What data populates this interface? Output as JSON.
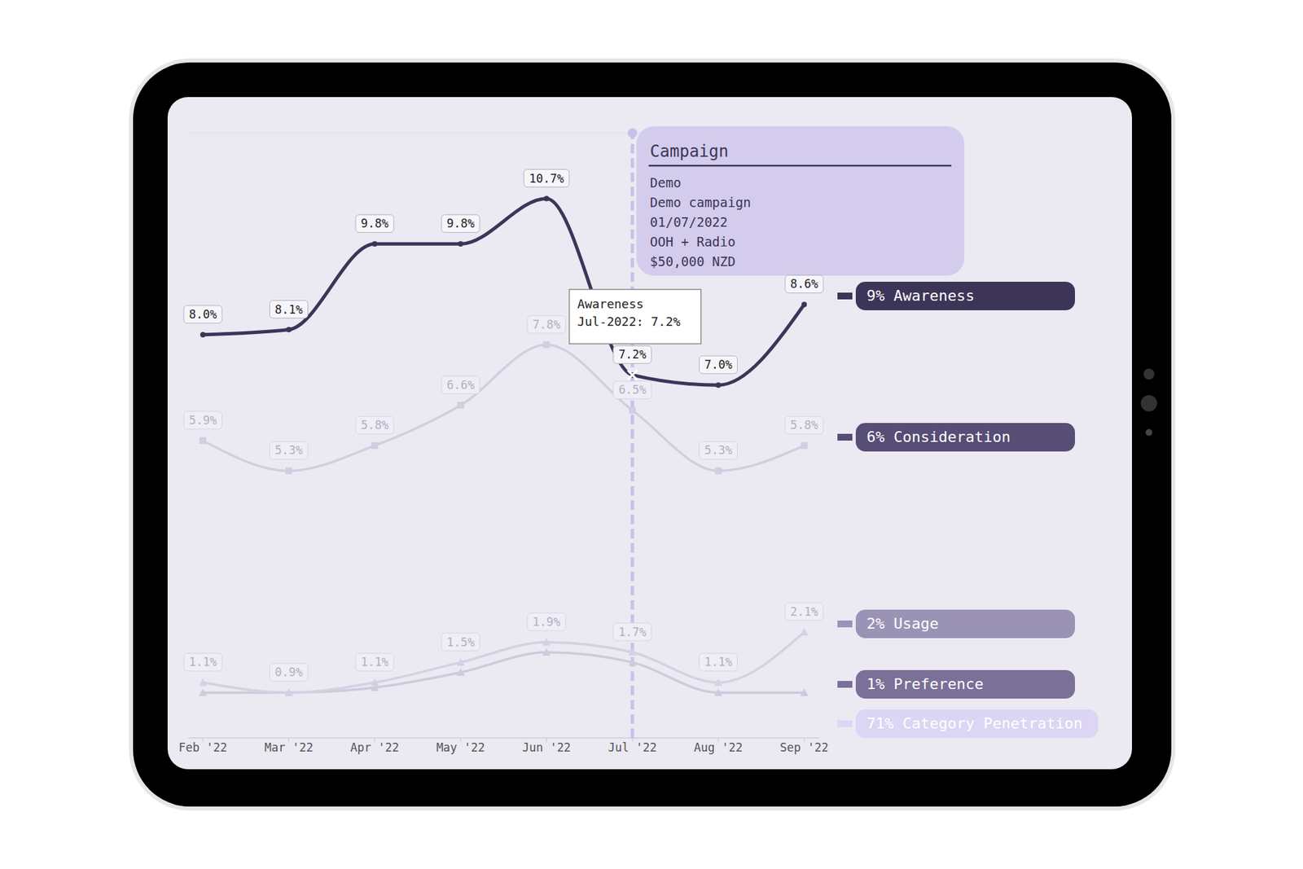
{
  "chart_data": {
    "type": "line",
    "categories": [
      "Feb '22",
      "Mar '22",
      "Apr '22",
      "May '22",
      "Jun '22",
      "Jul '22",
      "Aug '22",
      "Sep '22"
    ],
    "ylim": [
      0,
      12
    ],
    "yticks": [
      0,
      1,
      2,
      3,
      4,
      5,
      6,
      7,
      8,
      9,
      10,
      11,
      12
    ],
    "grid": true,
    "tick_labels": "x",
    "legend": "right",
    "series": [
      {
        "name": "Awareness",
        "label": "9% Awareness",
        "color": "#3d3558",
        "marker": "circle",
        "data_labels": true,
        "values": [
          8.0,
          8.1,
          9.8,
          9.8,
          10.7,
          7.2,
          7.0,
          8.6
        ],
        "value_labels": [
          "8.0%",
          "8.1%",
          "9.8%",
          "9.8%",
          "10.7%",
          "7.2%",
          "7.0%",
          "8.6%"
        ]
      },
      {
        "name": "Consideration",
        "label": "6% Consideration",
        "color": "#d2cddf",
        "marker": "square",
        "data_labels": true,
        "values": [
          5.9,
          5.3,
          5.8,
          6.6,
          7.8,
          6.5,
          5.3,
          5.8
        ],
        "value_labels": [
          "5.9%",
          "5.3%",
          "5.8%",
          "6.6%",
          "7.8%",
          "6.5%",
          "5.3%",
          "5.8%"
        ]
      },
      {
        "name": "Usage",
        "label": "2% Usage",
        "color": "#d5d0e2",
        "marker": "triangle",
        "data_labels": true,
        "values": [
          1.1,
          0.9,
          1.1,
          1.5,
          1.9,
          1.7,
          1.1,
          2.1
        ],
        "value_labels": [
          "1.1%",
          "0.9%",
          "1.1%",
          "1.5%",
          "1.9%",
          "1.7%",
          "1.1%",
          "2.1%"
        ]
      },
      {
        "name": "Preference",
        "label": "1% Preference",
        "color": "#cfcadb",
        "marker": "triangle",
        "data_labels": false,
        "values": [
          0.9,
          0.9,
          1.0,
          1.3,
          1.7,
          1.5,
          0.9,
          0.9
        ]
      },
      {
        "name": "Category Penetration",
        "label": "71% Category Penetration",
        "color": "#d9d2f0",
        "marker": "circle",
        "data_labels": false,
        "values": [
          null,
          null,
          null,
          null,
          null,
          null,
          null,
          null
        ]
      }
    ],
    "annotations": [
      {
        "x": "Jul '22",
        "title": "Campaign",
        "lines": [
          "Demo",
          "Demo campaign",
          "01/07/2022",
          "OOH + Radio",
          "$50,000 NZD"
        ]
      },
      {
        "x": "Jul '22",
        "y": 7.2,
        "lines": [
          "Awareness",
          "Jul-2022: 7.2%"
        ]
      }
    ]
  }
}
